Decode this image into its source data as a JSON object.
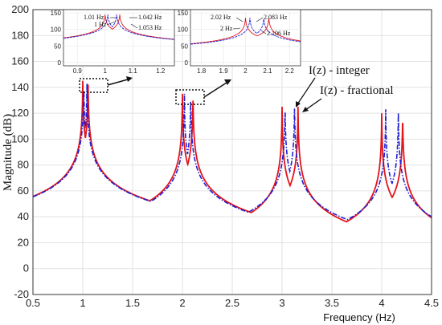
{
  "chart_data": {
    "type": "line",
    "xlabel": "Frequency  (Hz)",
    "ylabel": "Magnitude (dB)",
    "xlim": [
      0.5,
      4.5
    ],
    "ylim": [
      -20,
      200
    ],
    "xticks": [
      0.5,
      1,
      1.5,
      2,
      2.5,
      3,
      3.5,
      4,
      4.5
    ],
    "yticks": [
      -20,
      0,
      20,
      40,
      60,
      80,
      100,
      120,
      140,
      160,
      180,
      200
    ],
    "grid": true,
    "series": [
      {
        "name": "I(z) - integer",
        "color": "#1f1fd6",
        "style": "dash-dot",
        "peaks": [
          {
            "f": 1.01,
            "db": 145
          },
          {
            "f": 1.042,
            "db": 145
          },
          {
            "f": 2.02,
            "db": 135
          },
          {
            "f": 2.083,
            "db": 135
          },
          {
            "f": 3.03,
            "db": 128
          },
          {
            "f": 3.125,
            "db": 128
          },
          {
            "f": 4.04,
            "db": 123
          },
          {
            "f": 4.167,
            "db": 123
          }
        ],
        "baseline": -12
      },
      {
        "name": "I(z) - fractional",
        "color": "#e3141b",
        "style": "solid",
        "peaks": [
          {
            "f": 1.0,
            "db": 145
          },
          {
            "f": 1.053,
            "db": 145
          },
          {
            "f": 2.0,
            "db": 135
          },
          {
            "f": 2.106,
            "db": 135
          },
          {
            "f": 3.0,
            "db": 125
          },
          {
            "f": 3.16,
            "db": 125
          },
          {
            "f": 4.0,
            "db": 120
          },
          {
            "f": 4.21,
            "db": 120
          }
        ],
        "baseline": -12
      }
    ],
    "annotations": [
      {
        "text": "I(z) - integer"
      },
      {
        "text": "I(z) - fractional"
      }
    ],
    "insets": [
      {
        "xlim": [
          0.85,
          1.25
        ],
        "ylim": [
          -10,
          160
        ],
        "xticks": [
          "0.9",
          "1",
          "1.1",
          "1.2"
        ],
        "yticks": [
          "0",
          "50",
          "100",
          "150"
        ],
        "labels": [
          "1.01 Hz",
          "1 Hz",
          "1.042 Hz",
          "1.053 Hz"
        ]
      },
      {
        "xlim": [
          1.75,
          2.25
        ],
        "ylim": [
          -10,
          160
        ],
        "xticks": [
          "1.8",
          "1.9",
          "2",
          "2.1",
          "2.2"
        ],
        "yticks": [
          "0",
          "50",
          "100",
          "150"
        ],
        "labels": [
          "2.02 Hz",
          "2 Hz",
          "2.083 Hz",
          "2.106 Hz"
        ]
      }
    ]
  }
}
